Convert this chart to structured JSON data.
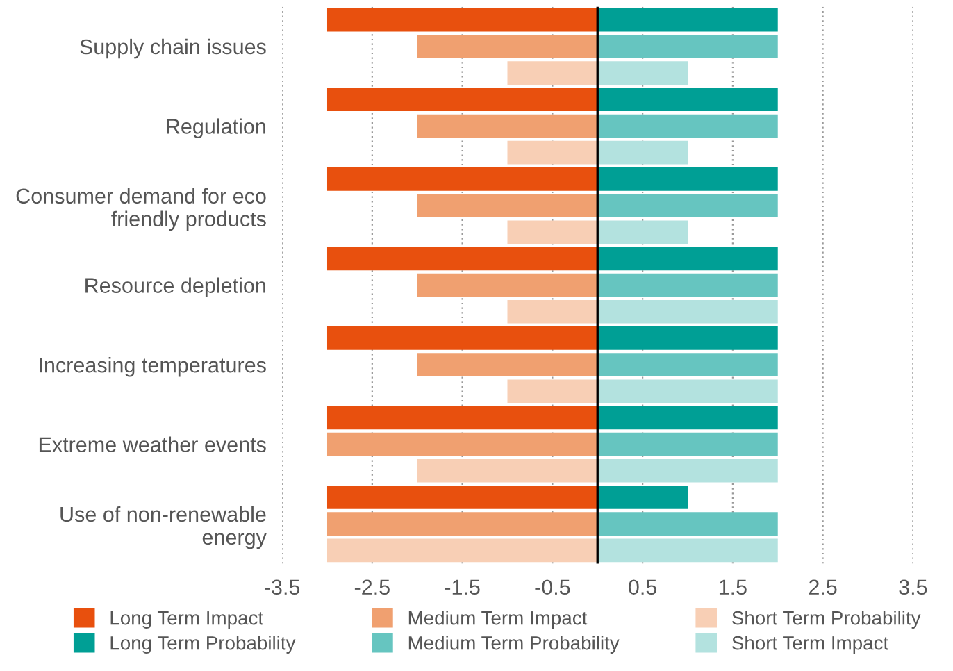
{
  "chart_data": {
    "type": "bar",
    "orientation": "horizontal",
    "stacked": true,
    "categories": [
      null,
      "Supply chain issues",
      null,
      null,
      "Regulation",
      null,
      null,
      "Consumer demand for eco friendly products",
      null,
      null,
      "Resource depletion",
      null,
      null,
      "Increasing temperatures",
      null,
      null,
      "Extreme weather events",
      null,
      null,
      "Use of non-renewable energy",
      null
    ],
    "series": [
      {
        "name": "Long Term Impact",
        "color": "#e8500e",
        "values": [
          -3,
          null,
          null,
          -3,
          null,
          null,
          -3,
          null,
          null,
          -3,
          null,
          null,
          -3,
          null,
          null,
          -3,
          null,
          null,
          -3,
          null,
          null
        ]
      },
      {
        "name": "Long Term Probability",
        "color": "#009f95",
        "values": [
          2,
          null,
          null,
          2,
          null,
          null,
          2,
          null,
          null,
          2,
          null,
          null,
          2,
          null,
          null,
          2,
          null,
          null,
          1,
          null,
          null
        ]
      },
      {
        "name": "Medium Term Impact",
        "color": "#f0a070",
        "values": [
          null,
          -2,
          null,
          null,
          -2,
          null,
          null,
          -2,
          null,
          null,
          -2,
          null,
          null,
          -2,
          null,
          null,
          -3,
          null,
          null,
          -3,
          null
        ]
      },
      {
        "name": "Medium Term Probability",
        "color": "#66c5c0",
        "values": [
          null,
          2,
          null,
          null,
          2,
          null,
          null,
          2,
          null,
          null,
          2,
          null,
          null,
          2,
          null,
          null,
          2,
          null,
          null,
          2,
          null
        ]
      },
      {
        "name": "Short Term Probability",
        "color": "#f8cfb5",
        "values": [
          null,
          null,
          -1,
          null,
          null,
          -1,
          null,
          null,
          -1,
          null,
          null,
          -1,
          null,
          null,
          -1,
          null,
          null,
          -2,
          null,
          null,
          -3
        ]
      },
      {
        "name": "Short Term Impact",
        "color": "#b3e2df",
        "values": [
          null,
          null,
          1,
          null,
          null,
          1,
          null,
          null,
          1,
          null,
          null,
          2,
          null,
          null,
          2,
          null,
          null,
          2,
          null,
          null,
          2
        ]
      }
    ],
    "xlim": [
      -3.5,
      3.5
    ],
    "xticks": [
      -3.5,
      -2.5,
      -1.5,
      -0.5,
      0.5,
      1.5,
      2.5,
      3.5
    ],
    "grid": "x",
    "legend": "bottom",
    "ref_lines": [
      {
        "axis": "x",
        "value": 0,
        "color": "#000000"
      }
    ]
  }
}
